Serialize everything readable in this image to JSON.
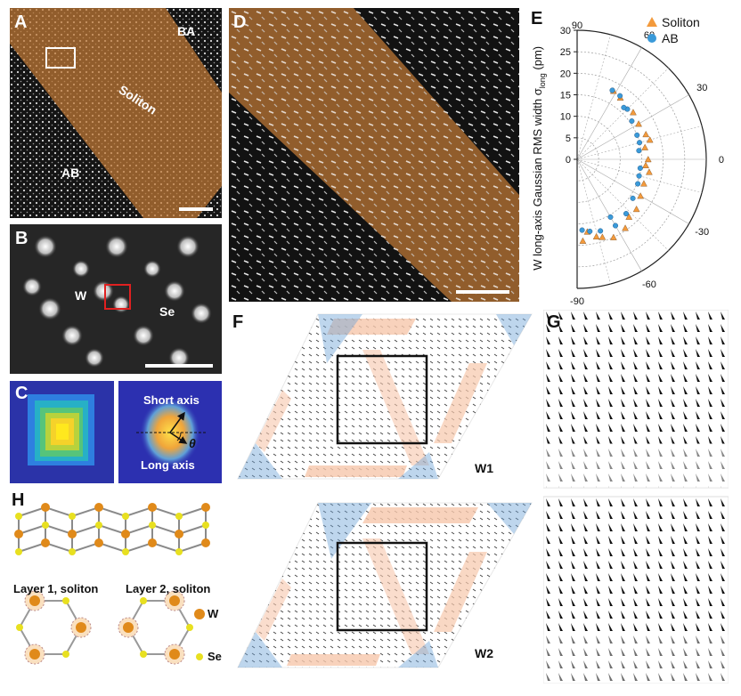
{
  "figure": {
    "panels": {
      "A": {
        "label": "A",
        "ba": "BA",
        "ab": "AB",
        "soliton": "Soliton"
      },
      "B": {
        "label": "B",
        "w": "W",
        "se": "Se"
      },
      "C": {
        "label": "C",
        "short_axis": "Short axis",
        "long_axis": "Long axis",
        "theta": "θ"
      },
      "D": {
        "label": "D"
      },
      "E": {
        "label": "E",
        "ylabel": "W long-axis Gaussian RMS width σ",
        "ylabel_sub": "long",
        "ylabel_unit": " (pm)"
      },
      "F": {
        "label": "F",
        "w1": "W1",
        "w2": "W2"
      },
      "G": {
        "label": "G"
      },
      "H": {
        "label": "H",
        "layer1": "Layer 1, soliton",
        "layer2": "Layer 2, soliton",
        "w": "W",
        "se": "Se"
      }
    }
  },
  "chart_data": {
    "type": "scatter",
    "coordinate_system": "polar",
    "angle_range_deg": [
      -90,
      90
    ],
    "angle_ticks_deg": [
      "90",
      "60",
      "30",
      "0",
      "-30",
      "-60",
      "-90"
    ],
    "radial_range": [
      0,
      30
    ],
    "radial_ticks": [
      "0",
      "5",
      "10",
      "15",
      "20",
      "25",
      "30"
    ],
    "grid": true,
    "legend_position": "top-right",
    "colors": {
      "soliton": "#f39a3c",
      "ab": "#3a9ad9"
    },
    "series": [
      {
        "name": "Soliton",
        "marker": "triangle",
        "points": [
          [
            18,
            62
          ],
          [
            17.5,
            55
          ],
          [
            17,
            40
          ],
          [
            16.5,
            30
          ],
          [
            17,
            20
          ],
          [
            16,
            10
          ],
          [
            16.5,
            0
          ],
          [
            17,
            -10
          ],
          [
            16.5,
            -20
          ],
          [
            17,
            -30
          ],
          [
            18,
            -40
          ],
          [
            19.5,
            -55
          ],
          [
            20,
            -65
          ],
          [
            19,
            -72
          ],
          [
            17,
            -82
          ],
          [
            19,
            -86
          ],
          [
            18.5,
            -76
          ],
          [
            18,
            -48
          ],
          [
            16,
            -5
          ],
          [
            17.5,
            15
          ]
        ]
      },
      {
        "name": "AB",
        "marker": "circle",
        "points": [
          [
            18,
            63
          ],
          [
            17.8,
            56
          ],
          [
            16.5,
            45
          ],
          [
            15.5,
            35
          ],
          [
            15,
            22
          ],
          [
            14.5,
            8
          ],
          [
            14.8,
            -8
          ],
          [
            15.2,
            -22
          ],
          [
            15.8,
            -35
          ],
          [
            17,
            -48
          ],
          [
            17.8,
            -60
          ],
          [
            17.5,
            -72
          ],
          [
            17,
            -80
          ],
          [
            16.5,
            -86
          ],
          [
            15.5,
            -60
          ],
          [
            14.9,
            -15
          ],
          [
            15,
            15
          ],
          [
            16.2,
            48
          ]
        ]
      }
    ]
  }
}
